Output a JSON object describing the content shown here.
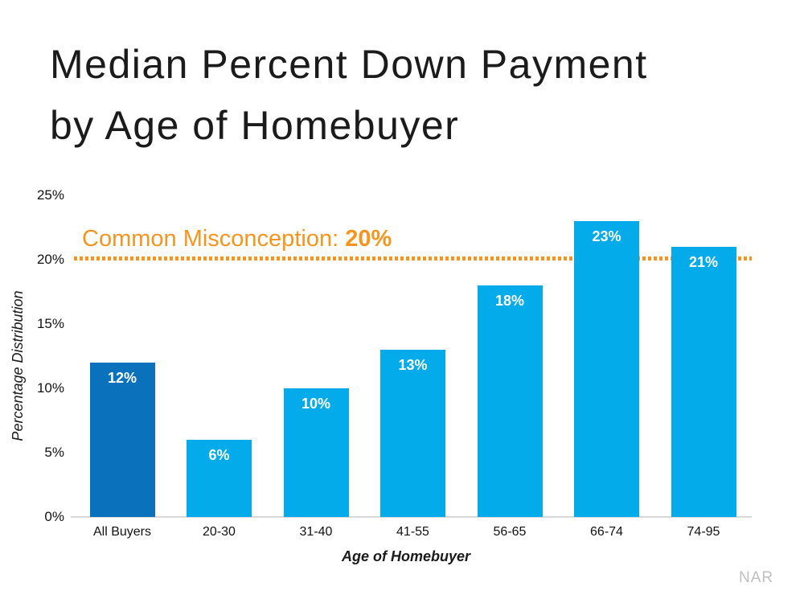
{
  "title": {
    "line1": "Median Percent Down Payment",
    "line2": "by Age of Homebuyer"
  },
  "annotation": {
    "prefix": "Common Misconception: ",
    "value": "20%"
  },
  "watermark": "NAR",
  "colors": {
    "highlight_bar": "#0A72BC",
    "default_bar": "#04ABEB",
    "accent_orange": "#F7941D",
    "axis_line": "#D9D9D9",
    "watermark_gray": "#BFBFBF",
    "text": "#1B1B1B",
    "bar_value_text": "#FFFFFF"
  },
  "chart_data": {
    "type": "bar",
    "title": "Median Percent Down Payment by Age of Homebuyer",
    "categories": [
      "All Buyers",
      "20-30",
      "31-40",
      "41-55",
      "56-65",
      "66-74",
      "74-95"
    ],
    "values": [
      12,
      6,
      10,
      13,
      18,
      23,
      21
    ],
    "bar_labels": [
      "12%",
      "6%",
      "10%",
      "13%",
      "18%",
      "23%",
      "21%"
    ],
    "xlabel": "Age of Homebuyer",
    "ylabel": "Percentage Distribution",
    "ylim": [
      0,
      25
    ],
    "ytick_values": [
      0,
      5,
      10,
      15,
      20,
      25
    ],
    "ytick_labels": [
      "0%",
      "5%",
      "10%",
      "15%",
      "20%",
      "25%"
    ],
    "grid": false,
    "legend": false,
    "reference_line": {
      "value": 20,
      "label": "Common Misconception: 20%",
      "style": "dotted",
      "color": "#F7941D"
    },
    "bar_colors": {
      "highlight_index": 0,
      "highlight": "#0A72BC",
      "default": "#04ABEB"
    }
  }
}
